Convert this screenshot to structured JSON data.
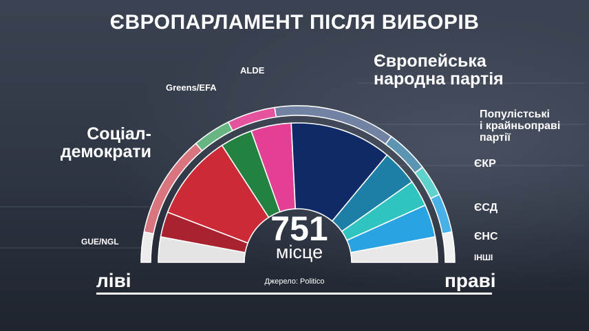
{
  "title": "ЄВРОПАРЛАМЕНТ ПІСЛЯ ВИБОРІВ",
  "source": "Джерело: Politico",
  "total": {
    "number": "751",
    "unit": "місце"
  },
  "axis": {
    "left": "ліві",
    "right": "праві"
  },
  "labels": {
    "gue": "GUE/NGL",
    "sd": "Соціал-\nдемократи",
    "greens": "Greens/EFA",
    "alde": "ALDE",
    "epp": "Європейська\nнародна партія",
    "populists": "Популістські\nі крайньоправі\nпартії",
    "ecr": "ЄКР",
    "efdd": "ЄСД",
    "enf": "ЄНС",
    "others": "ІНШІ"
  },
  "chart_data": {
    "type": "semicircle",
    "title": "ЄВРОПАРЛАМЕНТ ПІСЛЯ ВИБОРІВ",
    "total_seats": 751,
    "series": [
      {
        "name": "ІНШІ",
        "value": 44,
        "color": "#e4e4e4"
      },
      {
        "name": "GUE/NGL",
        "value": 44,
        "color": "#a8232f"
      },
      {
        "name": "Соціал-демократи",
        "value": 150,
        "color": "#cc2a36"
      },
      {
        "name": "Greens/EFA",
        "value": 56,
        "color": "#23823f"
      },
      {
        "name": "ALDE",
        "value": 70,
        "color": "#e23f95"
      },
      {
        "name": "Європейська народна партія",
        "value": 177,
        "color": "#0f2a66"
      },
      {
        "name": "ЄКР",
        "value": 63,
        "color": "#1d7fa5"
      },
      {
        "name": "ЄСД",
        "value": 46,
        "color": "#30c4c0"
      },
      {
        "name": "ЄНС",
        "value": 57,
        "color": "#2aa3e3"
      },
      {
        "name": "ІНШІ",
        "value": 44,
        "color": "#e8e8e8"
      }
    ],
    "outer_groups": [
      {
        "name": "GUE/NGL",
        "value": 44,
        "color": "#ececec"
      },
      {
        "name": "Соціал-демократи",
        "value": 150,
        "color": "#d9757f"
      },
      {
        "name": "Greens/EFA",
        "value": 56,
        "color": "#67b580"
      },
      {
        "name": "ALDE",
        "value": 70,
        "color": "#e5529e"
      },
      {
        "name": "Європейська народна партія",
        "value": 177,
        "color": "#7282a3"
      },
      {
        "name": "ЄКР",
        "value": 63,
        "color": "#5c95b2"
      },
      {
        "name": "ЄСД",
        "value": 46,
        "color": "#5fd2cc"
      },
      {
        "name": "ЄНС",
        "value": 57,
        "color": "#48b2e8"
      },
      {
        "name": "ІНШІ",
        "value": 44,
        "color": "#f1f1f1"
      }
    ]
  }
}
